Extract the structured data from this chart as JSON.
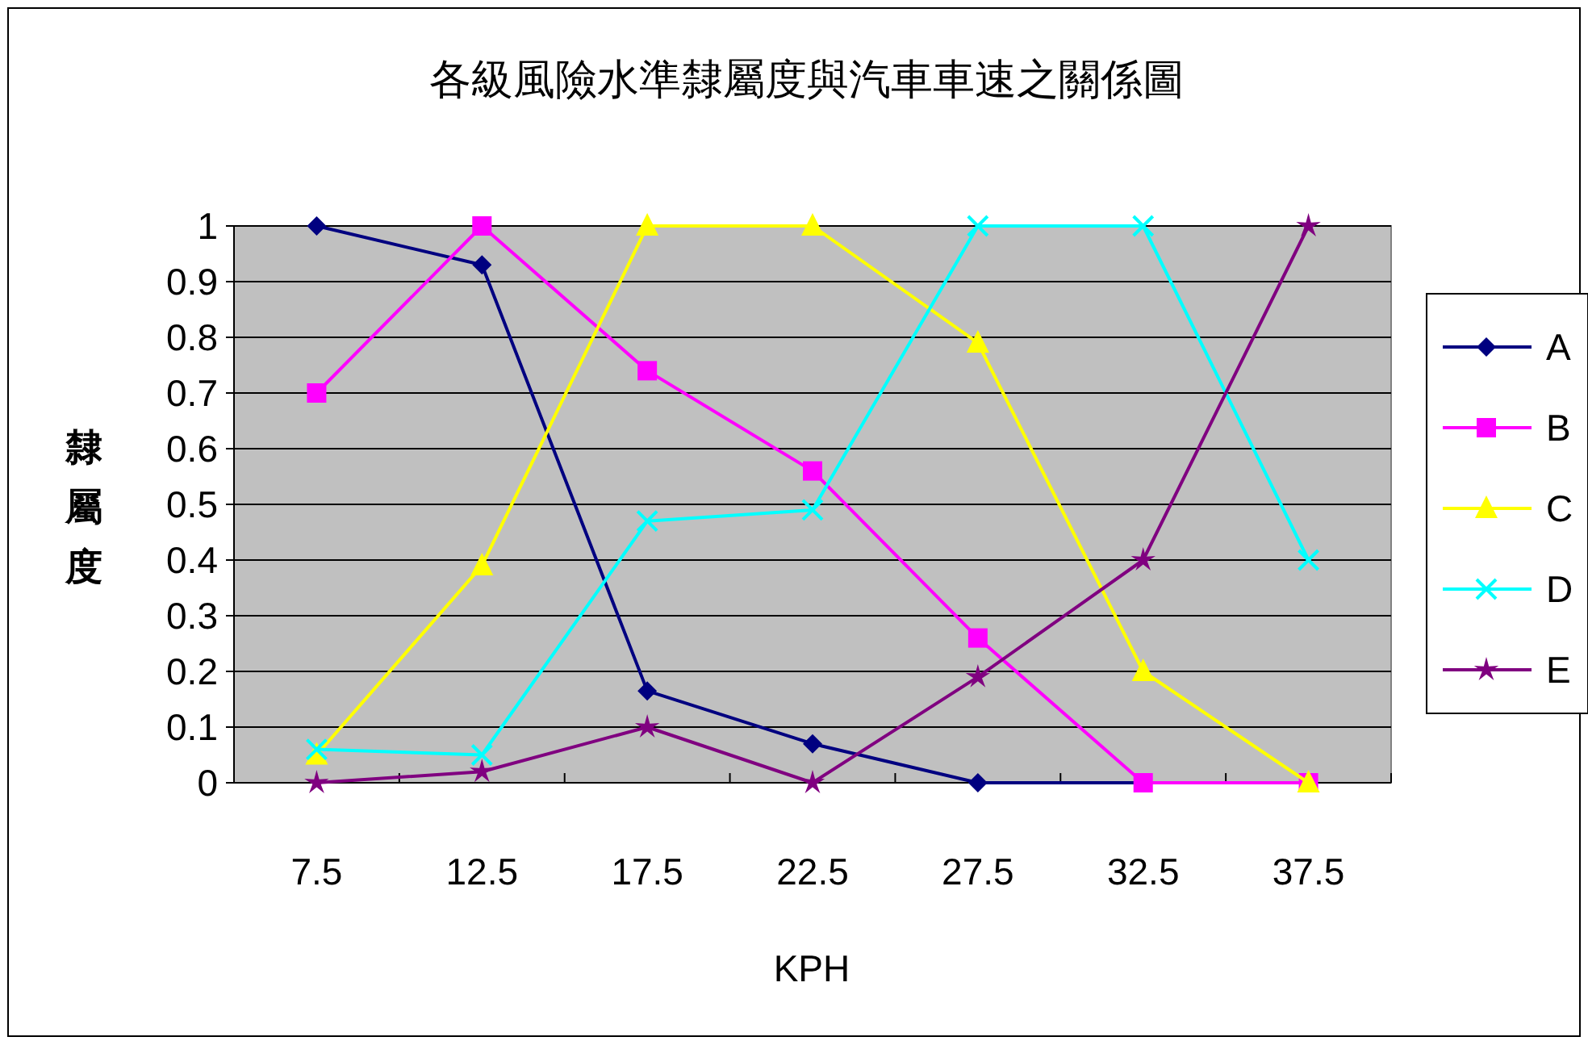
{
  "chart_data": {
    "type": "line",
    "title": "各級風險水準隸屬度與汽車車速之關係圖",
    "xlabel": "KPH",
    "ylabel": "隸屬度",
    "categories": [
      "7.5",
      "12.5",
      "17.5",
      "22.5",
      "27.5",
      "32.5",
      "37.5"
    ],
    "ylim": [
      0,
      1
    ],
    "yticks": [
      0,
      0.1,
      0.2,
      0.3,
      0.4,
      0.5,
      0.6,
      0.7,
      0.8,
      0.9,
      1
    ],
    "grid": "y",
    "legend": "right",
    "series": [
      {
        "name": "A",
        "color": "#000080",
        "marker": "diamond",
        "values": [
          1,
          0.93,
          0.165,
          0.07,
          0,
          0,
          0
        ]
      },
      {
        "name": "B",
        "color": "#ff00ff",
        "marker": "square",
        "values": [
          0.7,
          1,
          0.74,
          0.56,
          0.26,
          0,
          0
        ]
      },
      {
        "name": "C",
        "color": "#ffff00",
        "marker": "triangle",
        "values": [
          0.05,
          0.39,
          1,
          1,
          0.79,
          0.2,
          0
        ]
      },
      {
        "name": "D",
        "color": "#00ffff",
        "marker": "cross",
        "values": [
          0.06,
          0.05,
          0.47,
          0.49,
          1,
          1,
          0.4
        ]
      },
      {
        "name": "E",
        "color": "#800080",
        "marker": "star",
        "values": [
          0,
          0.02,
          0.1,
          0,
          0.19,
          0.4,
          1
        ]
      }
    ]
  }
}
